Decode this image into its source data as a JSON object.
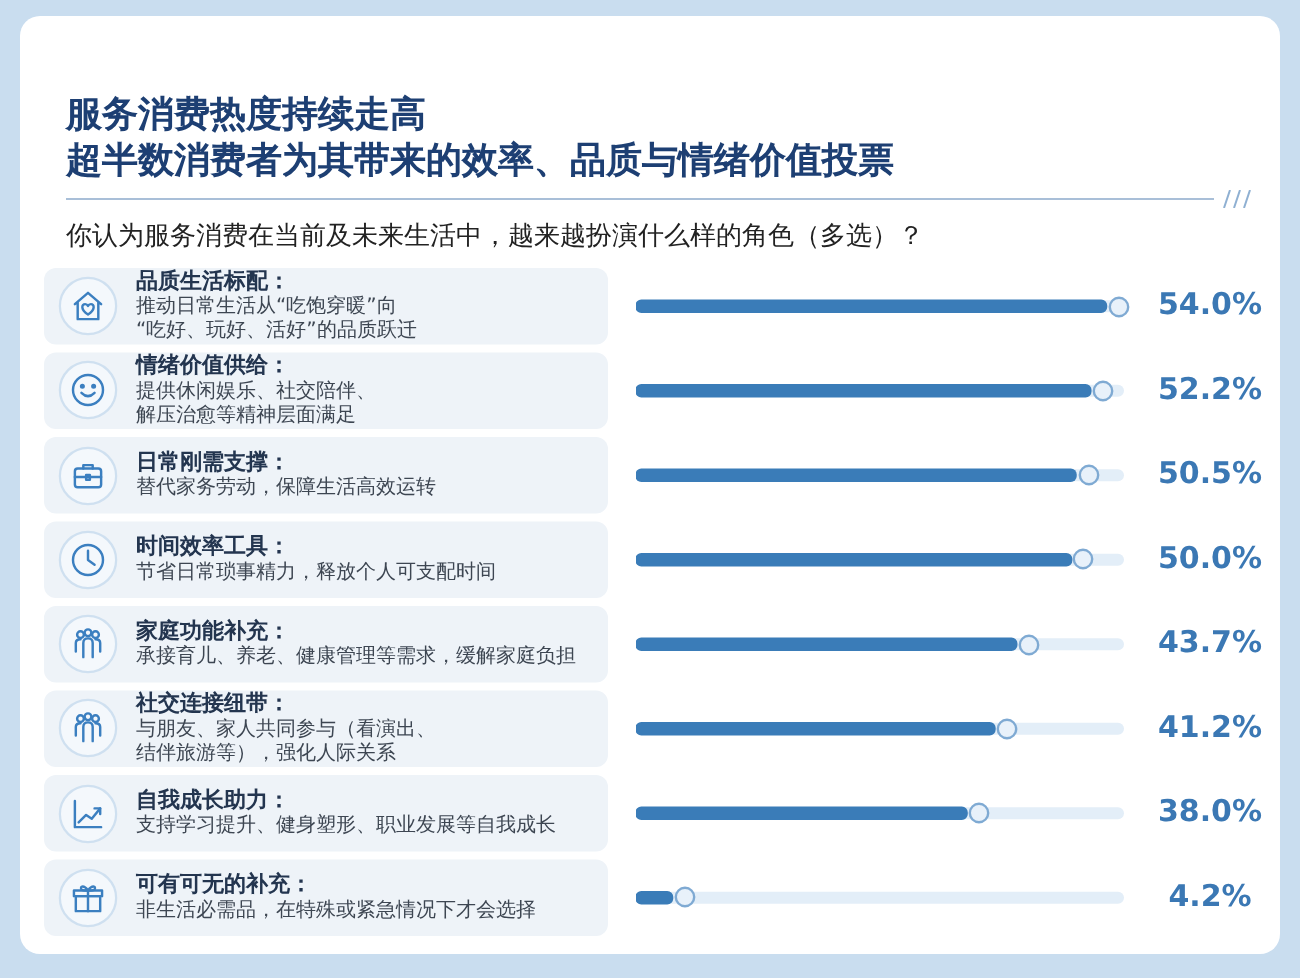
{
  "chart_data": {
    "type": "bar",
    "orientation": "horizontal",
    "title": "服务消费热度持续走高",
    "subtitle": "超半数消费者为其带来的效率、品质与情绪价值投票",
    "annotations": [
      "你认为服务消费在当前及未来生活中，越来越扮演什么样的角色（多选）？"
    ],
    "categories": [
      "品质生活标配：推动日常生活从“吃饱穿暖”向“吃好、玩好、活好”的品质跃迁",
      "情绪价值供给：提供休闲娱乐、社交陪伴、解压治愈等精神层面满足",
      "日常刚需支撑：替代家务劳动，保障生活高效运转",
      "时间效率工具：节省日常琐事精力，释放个人可支配时间",
      "家庭功能补充：承接育儿、养老、健康管理等需求，缓解家庭负担",
      "社交连接纽带：与朋友、家人共同参与（看演出、结伴旅游等），强化人际关系",
      "自我成长助力：支持学习提升、健身塑形、职业发展等自我成长",
      "可有可无的补充：非生活必需品，在特殊或紧急情况下才会选择"
    ],
    "values": [
      54.0,
      52.2,
      50.5,
      50.0,
      43.7,
      41.2,
      38.0,
      4.2
    ],
    "value_labels": [
      "54.0%",
      "52.2%",
      "50.5%",
      "50.0%",
      "43.7%",
      "41.2%",
      "38.0%",
      "4.2%"
    ],
    "color": "#3a7cb8",
    "xlim": [
      0,
      56
    ],
    "tick_labels": "y"
  }
}
